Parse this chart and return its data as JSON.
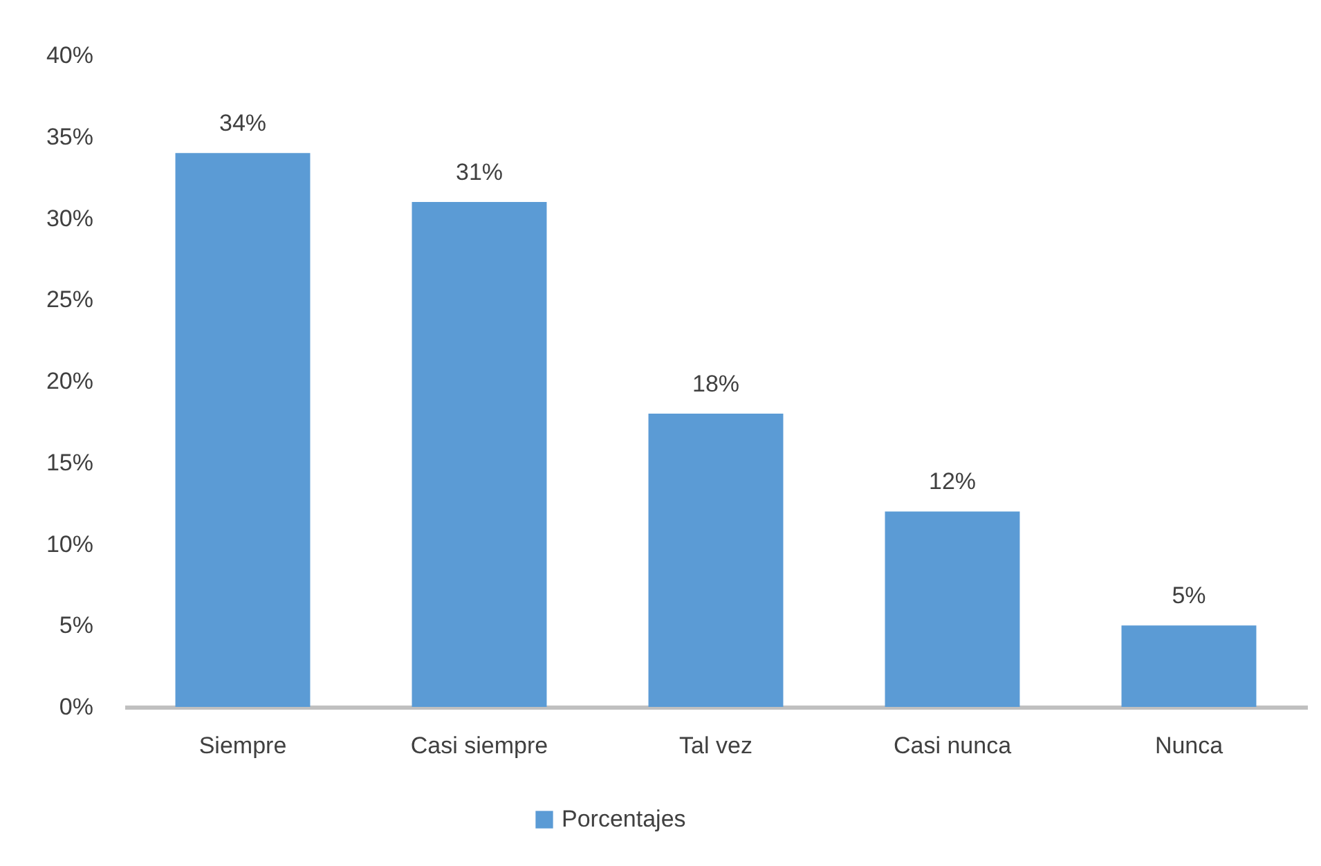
{
  "chart_data": {
    "type": "bar",
    "categories": [
      "Siempre",
      "Casi siempre",
      "Tal vez",
      "Casi nunca",
      "Nunca"
    ],
    "series": [
      {
        "name": "Porcentajes",
        "color": "#5b9bd5",
        "values": [
          34,
          31,
          18,
          12,
          5
        ],
        "value_labels": [
          "34%",
          "31%",
          "18%",
          "12%",
          "5%"
        ]
      }
    ],
    "ylim": [
      0,
      40
    ],
    "yticks": [
      {
        "value": 0,
        "label": "0%"
      },
      {
        "value": 5,
        "label": "5%"
      },
      {
        "value": 10,
        "label": "10%"
      },
      {
        "value": 15,
        "label": "15%"
      },
      {
        "value": 20,
        "label": "20%"
      },
      {
        "value": 25,
        "label": "25%"
      },
      {
        "value": 30,
        "label": "30%"
      },
      {
        "value": 35,
        "label": "35%"
      },
      {
        "value": 40,
        "label": "40%"
      }
    ],
    "legend": "bottom"
  }
}
